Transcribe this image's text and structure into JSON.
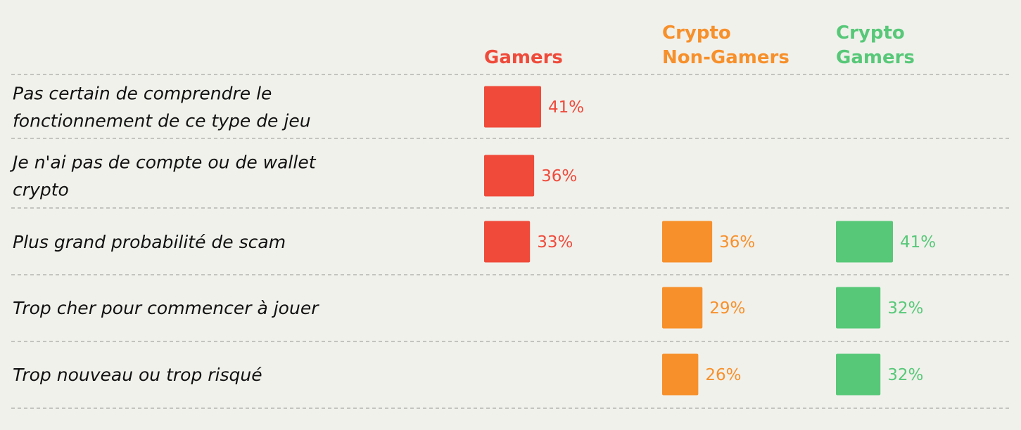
{
  "chart_data": {
    "type": "bar",
    "title": "",
    "xlabel": "",
    "ylabel": "",
    "value_unit": "%",
    "grid": false,
    "categories": [
      "Pas certain de comprendre le fonctionnement de ce type de jeu",
      "Je n'ai pas de compte ou de wallet crypto",
      "Plus grand probabilité de scam",
      "Trop cher pour commencer à jouer",
      "Trop nouveau ou trop risqué"
    ],
    "category_lines": [
      [
        "Pas certain de comprendre le",
        "fonctionnement de ce type de jeu"
      ],
      [
        "Je n'ai pas de compte ou de wallet",
        "crypto"
      ],
      [
        "Plus grand probabilité de scam"
      ],
      [
        "Trop cher pour commencer à jouer"
      ],
      [
        "Trop nouveau ou trop risqué"
      ]
    ],
    "series": [
      {
        "name": "Gamers",
        "name_lines": [
          "Gamers"
        ],
        "color": "#ef4a3a",
        "values": [
          41,
          36,
          33,
          null,
          null
        ],
        "labels": [
          "41%",
          "36%",
          "33%",
          "",
          ""
        ]
      },
      {
        "name": "Crypto Non-Gamers",
        "name_lines": [
          "Crypto",
          "Non-Gamers"
        ],
        "color": "#f7902a",
        "values": [
          null,
          null,
          36,
          29,
          26
        ],
        "labels": [
          "",
          "",
          "36%",
          "29%",
          "26%"
        ]
      },
      {
        "name": "Crypto Gamers",
        "name_lines": [
          "Crypto",
          "Gamers"
        ],
        "color": "#57c878",
        "values": [
          null,
          null,
          41,
          32,
          32
        ],
        "labels": [
          "",
          "",
          "41%",
          "32%",
          "32%"
        ]
      }
    ]
  }
}
